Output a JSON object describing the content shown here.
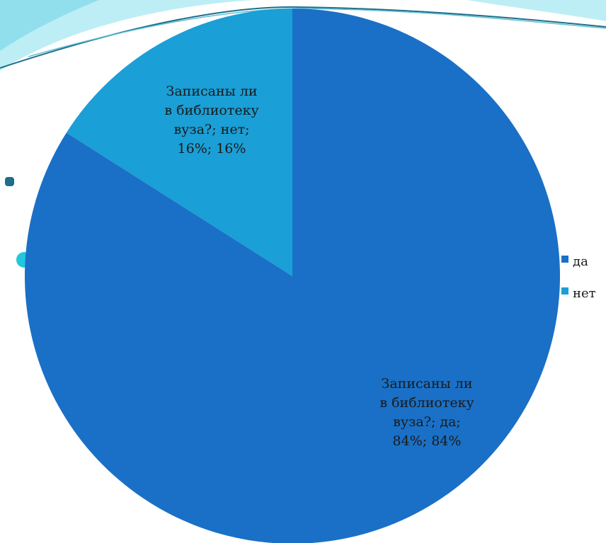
{
  "colors": {
    "yes": "#1a70c6",
    "no": "#1a9fd6",
    "accent_bullet": "#1c6e8a",
    "accent_circle": "#22c7de",
    "wave_light": "#9fe3ee",
    "wave_line": "#1c6e8a"
  },
  "chart_data": {
    "type": "pie",
    "title": "",
    "categories": [
      "да",
      "нет"
    ],
    "values": [
      84,
      16
    ],
    "unit": "%",
    "series": [
      {
        "name": "Записаны ли в библиотеку вуза?",
        "values": [
          84,
          16
        ]
      }
    ],
    "data_labels": [
      [
        "Записаны ли",
        "в библиотеку",
        "вуза?; да;",
        "84%; 84%"
      ],
      [
        "Записаны ли",
        "в библиотеку",
        "вуза?; нет;",
        "16%; 16%"
      ]
    ],
    "legend": {
      "position": "right",
      "entries": [
        "да",
        "нет"
      ]
    }
  }
}
